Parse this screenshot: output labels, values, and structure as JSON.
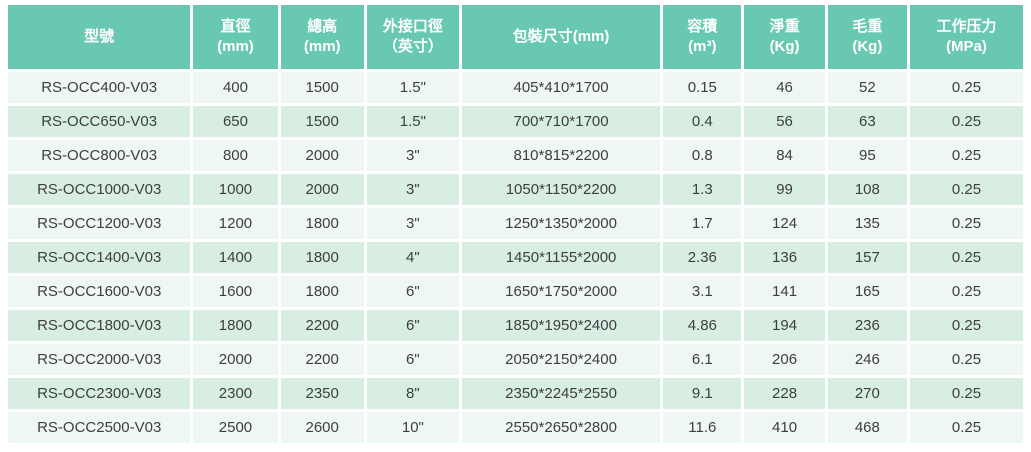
{
  "chart_data": {
    "type": "table",
    "columns": [
      {
        "id": "model",
        "lines": [
          "型號"
        ]
      },
      {
        "id": "diameter",
        "lines": [
          "直徑",
          "(mm)"
        ]
      },
      {
        "id": "total-height",
        "lines": [
          "總高",
          "(mm)"
        ]
      },
      {
        "id": "port-size",
        "lines": [
          "外接口徑",
          "（英寸）"
        ]
      },
      {
        "id": "packing-size",
        "lines": [
          "包裝尺寸(mm)"
        ]
      },
      {
        "id": "volume",
        "lines": [
          "容積",
          "(m³)"
        ]
      },
      {
        "id": "net-weight",
        "lines": [
          "淨重",
          "(Kg)"
        ]
      },
      {
        "id": "gross-weight",
        "lines": [
          "毛重",
          "(Kg)"
        ]
      },
      {
        "id": "pressure",
        "lines": [
          "工作压力",
          "(MPa)"
        ]
      }
    ],
    "rows": [
      [
        "RS-OCC400-V03",
        "400",
        "1500",
        "1.5\"",
        "405*410*1700",
        "0.15",
        "46",
        "52",
        "0.25"
      ],
      [
        "RS-OCC650-V03",
        "650",
        "1500",
        "1.5\"",
        "700*710*1700",
        "0.4",
        "56",
        "63",
        "0.25"
      ],
      [
        "RS-OCC800-V03",
        "800",
        "2000",
        "3\"",
        "810*815*2200",
        "0.8",
        "84",
        "95",
        "0.25"
      ],
      [
        "RS-OCC1000-V03",
        "1000",
        "2000",
        "3\"",
        "1050*1150*2200",
        "1.3",
        "99",
        "108",
        "0.25"
      ],
      [
        "RS-OCC1200-V03",
        "1200",
        "1800",
        "3\"",
        "1250*1350*2000",
        "1.7",
        "124",
        "135",
        "0.25"
      ],
      [
        "RS-OCC1400-V03",
        "1400",
        "1800",
        "4\"",
        "1450*1155*2000",
        "2.36",
        "136",
        "157",
        "0.25"
      ],
      [
        "RS-OCC1600-V03",
        "1600",
        "1800",
        "6\"",
        "1650*1750*2000",
        "3.1",
        "141",
        "165",
        "0.25"
      ],
      [
        "RS-OCC1800-V03",
        "1800",
        "2200",
        "6\"",
        "1850*1950*2400",
        "4.86",
        "194",
        "236",
        "0.25"
      ],
      [
        "RS-OCC2000-V03",
        "2000",
        "2200",
        "6\"",
        "2050*2150*2400",
        "6.1",
        "206",
        "246",
        "0.25"
      ],
      [
        "RS-OCC2300-V03",
        "2300",
        "2350",
        "8\"",
        "2350*2245*2550",
        "9.1",
        "228",
        "270",
        "0.25"
      ],
      [
        "RS-OCC2500-V03",
        "2500",
        "2600",
        "10\"",
        "2550*2650*2800",
        "11.6",
        "410",
        "468",
        "0.25"
      ]
    ]
  },
  "colors": {
    "header_bg": "#68C8B1",
    "header_text": "#FFFFFF",
    "row_light": "#EFF7F2",
    "row_dark": "#D8EEE3",
    "body_text": "#3E3E3E",
    "gap": "#FFFFFF"
  }
}
